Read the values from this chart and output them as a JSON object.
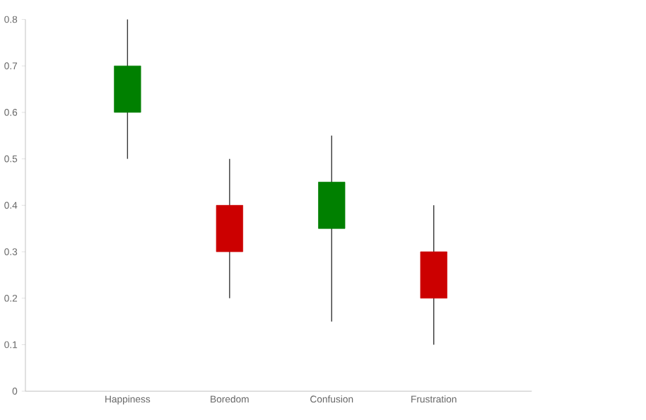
{
  "chart_data": {
    "type": "candlestick",
    "categories": [
      "Happiness",
      "Boredom",
      "Confusion",
      "Frustration"
    ],
    "ohlc": [
      [
        0.6,
        0.8,
        0.5,
        0.7
      ],
      [
        0.4,
        0.5,
        0.2,
        0.3
      ],
      [
        0.35,
        0.55,
        0.15,
        0.45
      ],
      [
        0.3,
        0.4,
        0.1,
        0.2
      ]
    ],
    "colors": [
      "#008000",
      "#cc0000",
      "#008000",
      "#cc0000"
    ],
    "ylim": [
      0,
      0.8
    ],
    "yticks": [
      0,
      0.1,
      0.2,
      0.3,
      0.4,
      0.5,
      0.6,
      0.7,
      0.8
    ],
    "grid": false
  }
}
